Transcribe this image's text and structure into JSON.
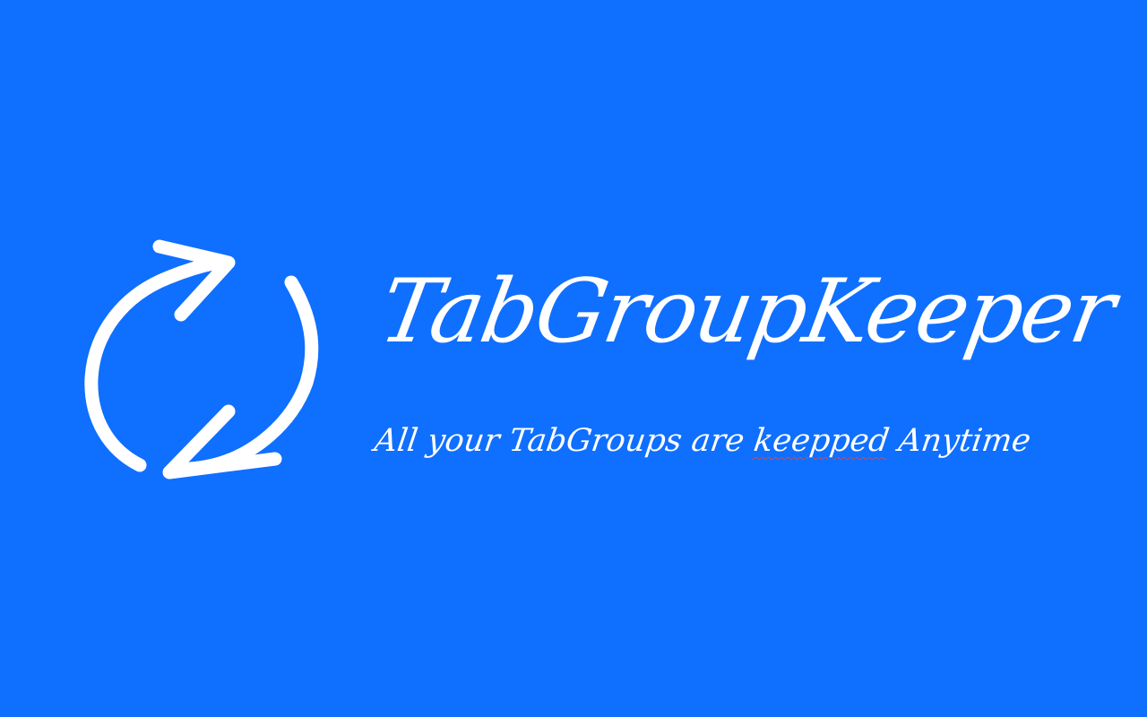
{
  "background_color": "#0f6fff",
  "foreground_color": "#ffffff",
  "logo": {
    "icon": "refresh-arrows-icon"
  },
  "title": "TabGroupKeeper",
  "tagline": {
    "before": "All your TabGroups are ",
    "misspelled_word": "keepped",
    "after": " Anytime"
  },
  "spellcheck_underline_color": "#e0453a"
}
